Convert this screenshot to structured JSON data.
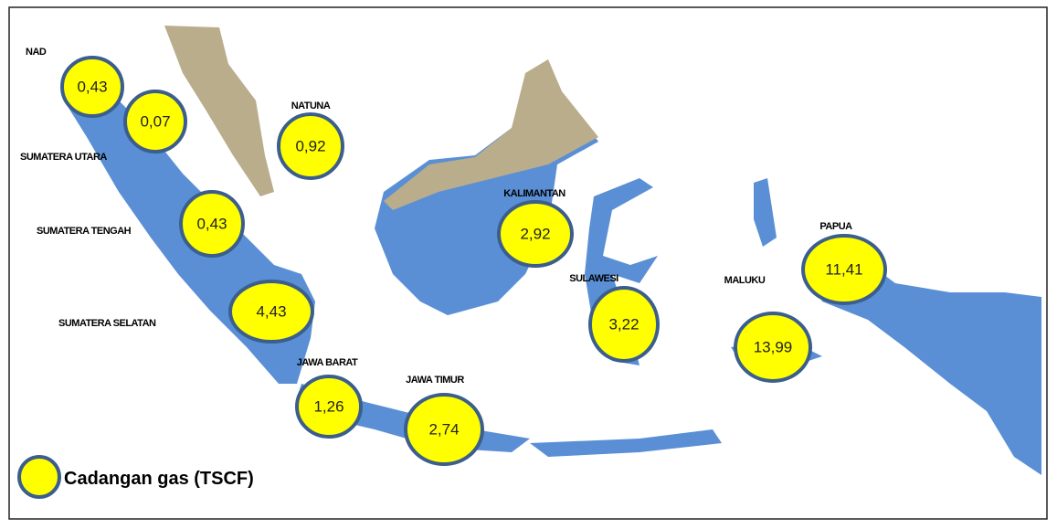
{
  "regions": [
    {
      "name": "NAD",
      "value": "0,43"
    },
    {
      "name": "SUMATERA UTARA",
      "value": "0,07"
    },
    {
      "name": "NATUNA",
      "value": "0,92"
    },
    {
      "name": "SUMATERA TENGAH",
      "value": "0,43"
    },
    {
      "name": "KALIMANTAN",
      "value": "2,92"
    },
    {
      "name": "SUMATERA SELATAN",
      "value": "4,43"
    },
    {
      "name": "SULAWESI",
      "value": "3,22"
    },
    {
      "name": "MALUKU",
      "value": "13,99"
    },
    {
      "name": "PAPUA",
      "value": "11,41"
    },
    {
      "name": "JAWA BARAT",
      "value": "1,26"
    },
    {
      "name": "JAWA TIMUR",
      "value": "2,74"
    }
  ],
  "legend": {
    "label": "Cadangan gas (TSCF)"
  }
}
